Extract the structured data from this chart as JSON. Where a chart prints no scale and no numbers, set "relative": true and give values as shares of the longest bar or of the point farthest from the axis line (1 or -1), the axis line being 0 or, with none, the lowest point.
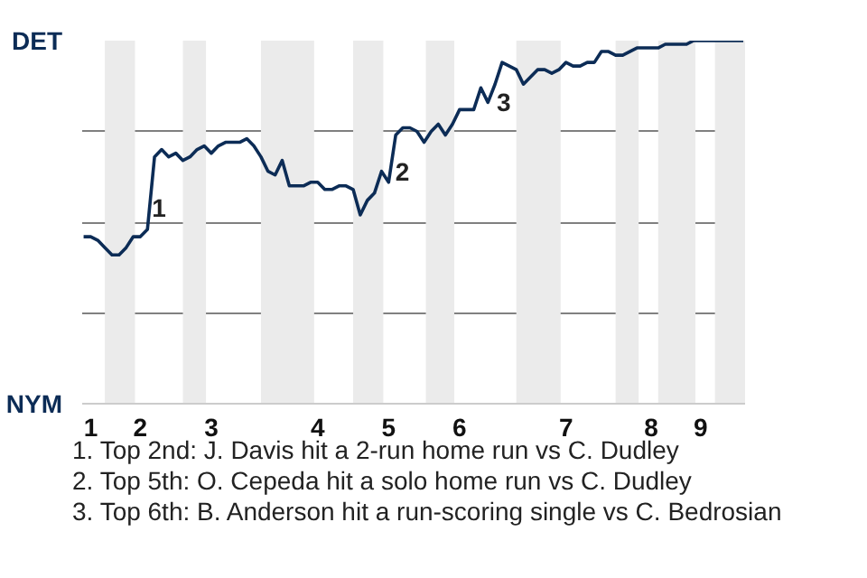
{
  "chart_data": {
    "type": "line",
    "relative": true,
    "categories": [
      null,
      "1",
      null,
      null,
      null,
      null,
      null,
      null,
      "2",
      null,
      null,
      null,
      null,
      null,
      null,
      null,
      null,
      null,
      "3",
      null,
      null,
      null,
      null,
      null,
      null,
      null,
      null,
      null,
      null,
      null,
      null,
      null,
      null,
      "4",
      null,
      null,
      null,
      null,
      null,
      null,
      null,
      null,
      null,
      "5",
      null,
      null,
      null,
      null,
      null,
      null,
      null,
      null,
      null,
      "6",
      null,
      null,
      null,
      null,
      null,
      null,
      null,
      null,
      null,
      null,
      null,
      null,
      null,
      null,
      "7",
      null,
      null,
      null,
      null,
      null,
      null,
      null,
      null,
      null,
      null,
      null,
      "8",
      null,
      null,
      null,
      null,
      null,
      null,
      "9",
      null,
      null,
      null,
      null,
      null,
      null
    ],
    "series": [
      {
        "color": "#0c2c56",
        "values": [
          0.46,
          0.46,
          0.45,
          0.43,
          0.41,
          0.41,
          0.43,
          0.46,
          0.46,
          0.48,
          0.68,
          0.7,
          0.68,
          0.69,
          0.67,
          0.68,
          0.7,
          0.71,
          0.69,
          0.71,
          0.72,
          0.72,
          0.72,
          0.73,
          0.71,
          0.68,
          0.64,
          0.63,
          0.67,
          0.6,
          0.6,
          0.6,
          0.61,
          0.61,
          0.59,
          0.59,
          0.6,
          0.6,
          0.59,
          0.52,
          0.56,
          0.58,
          0.64,
          0.61,
          0.74,
          0.76,
          0.76,
          0.75,
          0.72,
          0.75,
          0.77,
          0.74,
          0.77,
          0.81,
          0.81,
          0.81,
          0.87,
          0.83,
          0.88,
          0.94,
          0.93,
          0.92,
          0.88,
          0.9,
          0.92,
          0.92,
          0.91,
          0.92,
          0.94,
          0.93,
          0.93,
          0.94,
          0.94,
          0.97,
          0.97,
          0.96,
          0.96,
          0.97,
          0.98,
          0.98,
          0.98,
          0.98,
          0.99,
          0.99,
          0.99,
          0.99,
          1,
          1,
          1,
          1,
          1,
          1,
          1,
          1
        ]
      }
    ],
    "grid": "y",
    "marker": "none",
    "line_style": "solid",
    "annotations": [
      "DET",
      "NYM",
      "1",
      "2",
      "3",
      "1. Top 2nd: J. Davis hit a 2-run home run vs C. Dudley",
      "2. Top 5th: O. Cepeda hit a solo home run vs C. Dudley",
      "3. Top 6th: B. Anderson hit a run-scoring single vs C. Bedrosian"
    ]
  }
}
